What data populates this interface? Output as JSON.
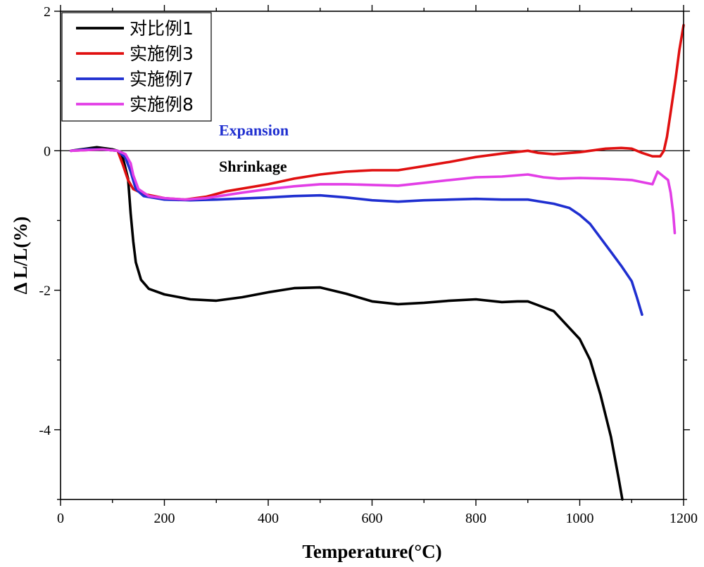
{
  "chart_data": {
    "type": "line",
    "title": "",
    "xlabel": "Temperature(°C)",
    "ylabel": "Δ L/L(%)",
    "xlim": [
      0,
      1200
    ],
    "ylim": [
      -5,
      2
    ],
    "x_ticks": [
      0,
      200,
      400,
      600,
      800,
      1000,
      1200
    ],
    "y_ticks": [
      -4,
      -2,
      0,
      2
    ],
    "x_tick_labels": [
      "0",
      "200",
      "400",
      "600",
      "800",
      "1000",
      "1200"
    ],
    "y_tick_labels": [
      "-4",
      "-2",
      "0",
      "2"
    ],
    "legend_position": "top-left",
    "reference_line": 0,
    "annotations": [
      {
        "text": "Expansion",
        "x": 400,
        "y": 0.28,
        "color": "#1f2fd0"
      },
      {
        "text": "Shrinkage",
        "x": 400,
        "y": -0.24,
        "color": "#000000"
      }
    ],
    "series": [
      {
        "name": "对比例1",
        "color": "#000000",
        "points": [
          [
            20,
            0
          ],
          [
            50,
            0.03
          ],
          [
            70,
            0.05
          ],
          [
            100,
            0.02
          ],
          [
            110,
            0
          ],
          [
            120,
            -0.1
          ],
          [
            130,
            -0.4
          ],
          [
            135,
            -0.9
          ],
          [
            140,
            -1.3
          ],
          [
            145,
            -1.6
          ],
          [
            155,
            -1.85
          ],
          [
            170,
            -1.98
          ],
          [
            200,
            -2.06
          ],
          [
            250,
            -2.13
          ],
          [
            300,
            -2.15
          ],
          [
            350,
            -2.1
          ],
          [
            400,
            -2.03
          ],
          [
            450,
            -1.97
          ],
          [
            500,
            -1.96
          ],
          [
            550,
            -2.05
          ],
          [
            600,
            -2.16
          ],
          [
            650,
            -2.2
          ],
          [
            700,
            -2.18
          ],
          [
            750,
            -2.15
          ],
          [
            800,
            -2.13
          ],
          [
            850,
            -2.17
          ],
          [
            880,
            -2.16
          ],
          [
            900,
            -2.16
          ],
          [
            950,
            -2.3
          ],
          [
            1000,
            -2.7
          ],
          [
            1020,
            -3.0
          ],
          [
            1040,
            -3.5
          ],
          [
            1060,
            -4.1
          ],
          [
            1075,
            -4.7
          ],
          [
            1082,
            -5.0
          ]
        ]
      },
      {
        "name": "实施例3",
        "color": "#e01010",
        "points": [
          [
            20,
            0
          ],
          [
            50,
            0.01
          ],
          [
            80,
            0.02
          ],
          [
            110,
            0
          ],
          [
            120,
            -0.2
          ],
          [
            130,
            -0.42
          ],
          [
            140,
            -0.55
          ],
          [
            160,
            -0.62
          ],
          [
            200,
            -0.68
          ],
          [
            240,
            -0.7
          ],
          [
            280,
            -0.66
          ],
          [
            320,
            -0.58
          ],
          [
            400,
            -0.48
          ],
          [
            450,
            -0.4
          ],
          [
            500,
            -0.34
          ],
          [
            550,
            -0.3
          ],
          [
            600,
            -0.28
          ],
          [
            650,
            -0.28
          ],
          [
            700,
            -0.22
          ],
          [
            750,
            -0.16
          ],
          [
            800,
            -0.09
          ],
          [
            850,
            -0.04
          ],
          [
            900,
            0
          ],
          [
            920,
            -0.03
          ],
          [
            950,
            -0.05
          ],
          [
            1000,
            -0.02
          ],
          [
            1050,
            0.03
          ],
          [
            1080,
            0.04
          ],
          [
            1100,
            0.03
          ],
          [
            1120,
            -0.03
          ],
          [
            1140,
            -0.08
          ],
          [
            1155,
            -0.08
          ],
          [
            1162,
            0
          ],
          [
            1168,
            0.2
          ],
          [
            1175,
            0.55
          ],
          [
            1185,
            1.05
          ],
          [
            1192,
            1.45
          ],
          [
            1200,
            1.8
          ]
        ]
      },
      {
        "name": "实施例7",
        "color": "#1f2fd0",
        "points": [
          [
            20,
            0
          ],
          [
            50,
            0.02
          ],
          [
            80,
            0.02
          ],
          [
            110,
            0
          ],
          [
            125,
            -0.1
          ],
          [
            135,
            -0.3
          ],
          [
            145,
            -0.55
          ],
          [
            160,
            -0.65
          ],
          [
            200,
            -0.7
          ],
          [
            250,
            -0.71
          ],
          [
            300,
            -0.7
          ],
          [
            400,
            -0.67
          ],
          [
            450,
            -0.65
          ],
          [
            500,
            -0.64
          ],
          [
            550,
            -0.67
          ],
          [
            600,
            -0.71
          ],
          [
            650,
            -0.73
          ],
          [
            700,
            -0.71
          ],
          [
            750,
            -0.7
          ],
          [
            800,
            -0.69
          ],
          [
            850,
            -0.7
          ],
          [
            900,
            -0.7
          ],
          [
            950,
            -0.76
          ],
          [
            980,
            -0.82
          ],
          [
            1000,
            -0.92
          ],
          [
            1020,
            -1.05
          ],
          [
            1040,
            -1.25
          ],
          [
            1060,
            -1.45
          ],
          [
            1080,
            -1.65
          ],
          [
            1100,
            -1.87
          ],
          [
            1110,
            -2.1
          ],
          [
            1120,
            -2.35
          ]
        ]
      },
      {
        "name": "实施例8",
        "color": "#e23ee6",
        "points": [
          [
            20,
            0
          ],
          [
            50,
            0.01
          ],
          [
            80,
            0.02
          ],
          [
            110,
            0
          ],
          [
            125,
            -0.05
          ],
          [
            135,
            -0.18
          ],
          [
            140,
            -0.35
          ],
          [
            150,
            -0.55
          ],
          [
            170,
            -0.65
          ],
          [
            200,
            -0.68
          ],
          [
            240,
            -0.7
          ],
          [
            280,
            -0.68
          ],
          [
            350,
            -0.6
          ],
          [
            400,
            -0.55
          ],
          [
            450,
            -0.51
          ],
          [
            500,
            -0.48
          ],
          [
            550,
            -0.48
          ],
          [
            600,
            -0.49
          ],
          [
            650,
            -0.5
          ],
          [
            700,
            -0.46
          ],
          [
            750,
            -0.42
          ],
          [
            800,
            -0.38
          ],
          [
            850,
            -0.37
          ],
          [
            900,
            -0.34
          ],
          [
            930,
            -0.38
          ],
          [
            960,
            -0.4
          ],
          [
            1000,
            -0.39
          ],
          [
            1050,
            -0.4
          ],
          [
            1100,
            -0.42
          ],
          [
            1140,
            -0.48
          ],
          [
            1150,
            -0.3
          ],
          [
            1160,
            -0.36
          ],
          [
            1170,
            -0.42
          ],
          [
            1175,
            -0.6
          ],
          [
            1180,
            -0.9
          ],
          [
            1183,
            -1.18
          ]
        ]
      }
    ]
  }
}
